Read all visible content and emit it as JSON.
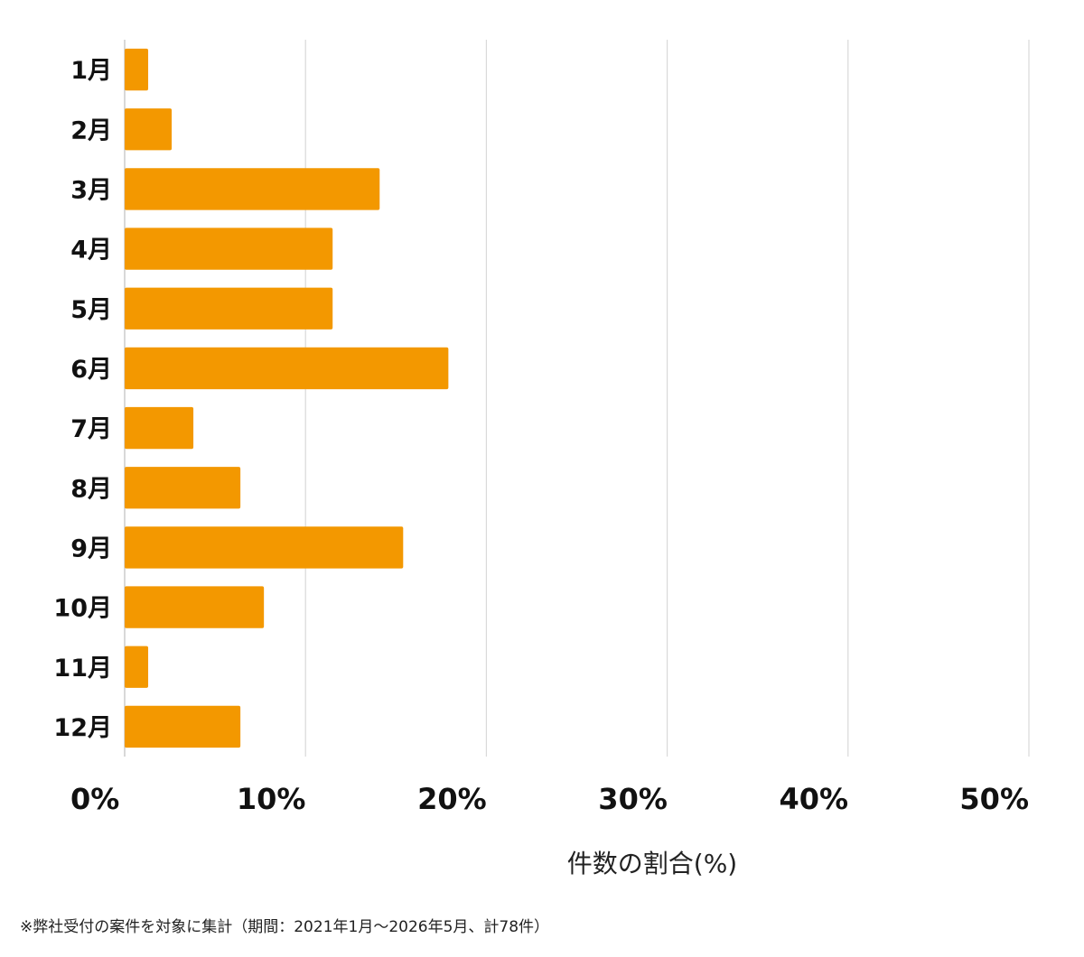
{
  "chart_data": {
    "type": "bar",
    "orientation": "horizontal",
    "categories": [
      "1月",
      "2月",
      "3月",
      "4月",
      "5月",
      "6月",
      "7月",
      "8月",
      "9月",
      "10月",
      "11月",
      "12月"
    ],
    "values": [
      1.3,
      2.6,
      14.1,
      11.5,
      11.5,
      17.9,
      3.8,
      6.4,
      15.4,
      7.7,
      1.3,
      6.4
    ],
    "xlabel": "件数の割合(%)",
    "xlim": [
      0,
      50
    ],
    "xticks": [
      0,
      10,
      20,
      30,
      40,
      50
    ],
    "xtick_labels": [
      "0%",
      "10%",
      "20%",
      "30%",
      "40%",
      "50%"
    ],
    "grid": "vertical",
    "bar_color": "#f39800",
    "grid_color": "#d9d9d9"
  },
  "footnote": "※弊社受付の案件を対象に集計（期間：2021年1月～2026年5月、計78件）"
}
